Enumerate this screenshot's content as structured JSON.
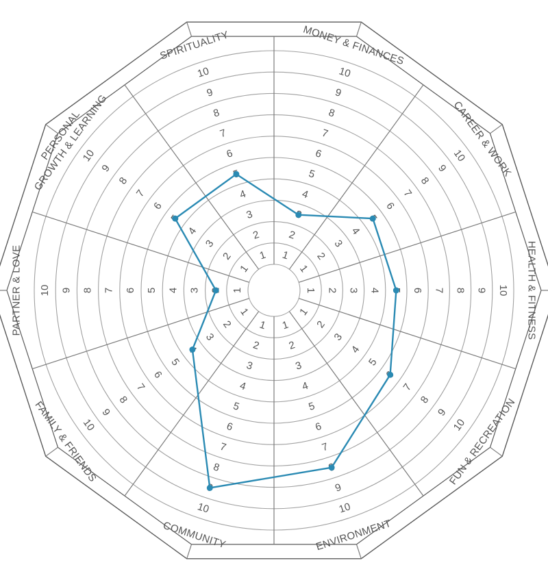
{
  "chart_data": {
    "type": "radar",
    "title": "",
    "scale": {
      "min": 1,
      "max": 10,
      "ticks": [
        1,
        2,
        3,
        4,
        5,
        6,
        7,
        8,
        9,
        10
      ]
    },
    "categories": [
      {
        "lines": [
          "MONEY & FINANCES"
        ],
        "value": 3
      },
      {
        "lines": [
          "CAREER & WORK"
        ],
        "value": 5
      },
      {
        "lines": [
          "HEALTH & FITNESS"
        ],
        "value": 5
      },
      {
        "lines": [
          "FUN & RECREATION"
        ],
        "value": 6
      },
      {
        "lines": [
          "ENVIRONMENT"
        ],
        "value": 8
      },
      {
        "lines": [
          "COMMUNITY"
        ],
        "value": 9
      },
      {
        "lines": [
          "FAMILY & FRIENDS"
        ],
        "value": 4
      },
      {
        "lines": [
          "PARTNER & LOVE"
        ],
        "value": 2
      },
      {
        "lines": [
          "PERSONAL",
          "GROWTH & LEARNING"
        ],
        "value": 5
      },
      {
        "lines": [
          "SPIRITUALITY"
        ],
        "value": 5
      }
    ],
    "series": [
      {
        "values": [
          3,
          5,
          5,
          6,
          8,
          9,
          4,
          2,
          5,
          5
        ]
      }
    ],
    "colors": {
      "series": "#2a8ab3",
      "grid": "#a0a0a0",
      "outline": "#5a5a5a",
      "text": "#555555"
    }
  }
}
